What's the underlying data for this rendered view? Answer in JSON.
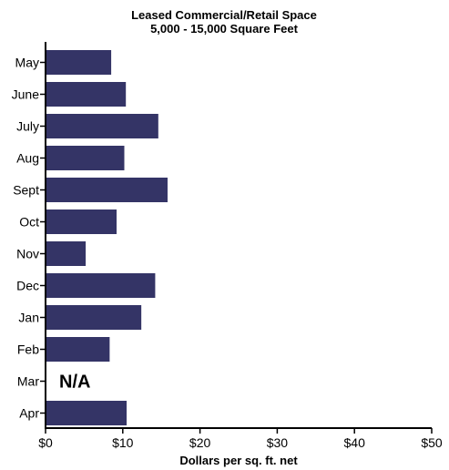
{
  "chart_data": {
    "type": "bar",
    "orientation": "horizontal",
    "title": "Leased Commercial/Retail Space",
    "subtitle": "5,000 - 15,000 Square Feet",
    "xlabel": "Dollars per sq. ft. net",
    "ylabel": "",
    "categories": [
      "May",
      "June",
      "July",
      "Aug",
      "Sept",
      "Oct",
      "Nov",
      "Dec",
      "Jan",
      "Feb",
      "Mar",
      "Apr"
    ],
    "values": [
      8.5,
      10.4,
      14.6,
      10.2,
      15.8,
      9.2,
      5.2,
      14.2,
      12.4,
      8.3,
      null,
      10.5
    ],
    "missing_label": "N/A",
    "xlim": [
      0,
      50
    ],
    "xticks": [
      0,
      10,
      20,
      30,
      40,
      50
    ],
    "xtick_labels": [
      "$0",
      "$10",
      "$20",
      "$30",
      "$40",
      "$50"
    ],
    "bar_color": "#343466",
    "grid": false
  }
}
